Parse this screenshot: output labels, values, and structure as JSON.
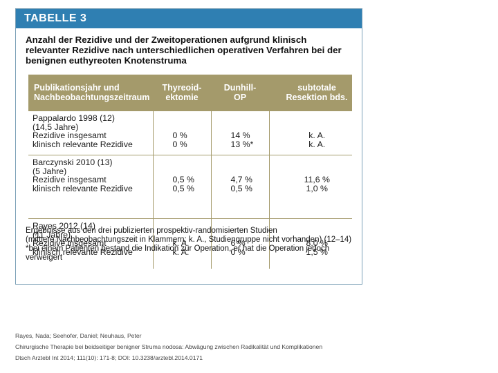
{
  "figure": {
    "header": "TABELLE 3",
    "title_lines": [
      "Anzahl der Rezidive und der Zweitoperationen aufgrund klinisch",
      "relevanter Rezidive nach unterschiedlichen operativen Verfahren bei der",
      "benignen euthyreoten Knotenstruma"
    ],
    "table": {
      "headers": [
        [
          "Publikationsjahr und",
          "Nachbeobachtungszeitraum"
        ],
        [
          "Thyreoid-",
          "ektomie"
        ],
        [
          "Dunhill-",
          "OP"
        ],
        [
          "subtotale",
          "Resektion bds."
        ]
      ],
      "studies": [
        {
          "name": "Pappalardo 1998 (12)",
          "followup": "(14,5 Jahre)",
          "rows": [
            {
              "label": "Rezidive insgesamt",
              "thyreoidektomie": "0 %",
              "dunhill": "14 %",
              "subtotal": "k. A."
            },
            {
              "label": "klinisch relevante Rezidive",
              "thyreoidektomie": "0 %",
              "dunhill": "13 %*",
              "subtotal": "k. A."
            }
          ]
        },
        {
          "name": "Barczynski 2010 (13)",
          "followup": "(5 Jahre)",
          "rows": [
            {
              "label": "Rezidive insgesamt",
              "thyreoidektomie": "0,5 %",
              "dunhill": "4,7 %",
              "subtotal": "11,6 %"
            },
            {
              "label": "klinisch relevante Rezidive",
              "thyreoidektomie": "0,5 %",
              "dunhill": "0,5 %",
              "subtotal": "1,0 %"
            }
          ]
        },
        {
          "name": "Rayes 2012 (14)",
          "followup": "(11 Jahre)",
          "rows": [
            {
              "label": "Rezidive insgesamt",
              "thyreoidektomie": "k. A.",
              "dunhill": "6 %",
              "subtotal": "8,0 %"
            },
            {
              "label": "klinisch relevante Rezidive",
              "thyreoidektomie": "k. A.",
              "dunhill": "0 %",
              "subtotal": "1,5 %"
            }
          ]
        }
      ]
    },
    "footnote_lines": [
      "Ergebnisse aus den drei publizierten prospektiv-randomisierten Studien",
      "(mittlere Nachbeobachtungszeit in Klammern; k. A., Studiengruppe nicht vorhanden) (12–14)",
      "*bei einem Patienten bestand die Indikation zur Operation, er hat die Operation jedoch verweigert"
    ]
  },
  "citation": {
    "authors": "Rayes, Nada; Seehofer, Daniel; Neuhaus, Peter",
    "title": "Chirurgische Therapie bei beidseitiger benigner Struma nodosa: Abwägung zwischen Radikalität und Komplikationen",
    "source": "Dtsch Arztebl Int 2014; 111(10): 171-8; DOI: 10.3238/arztebl.2014.0171"
  },
  "colors": {
    "header_blue": "#2f7fb2",
    "table_header_olive": "#a49a6b"
  }
}
